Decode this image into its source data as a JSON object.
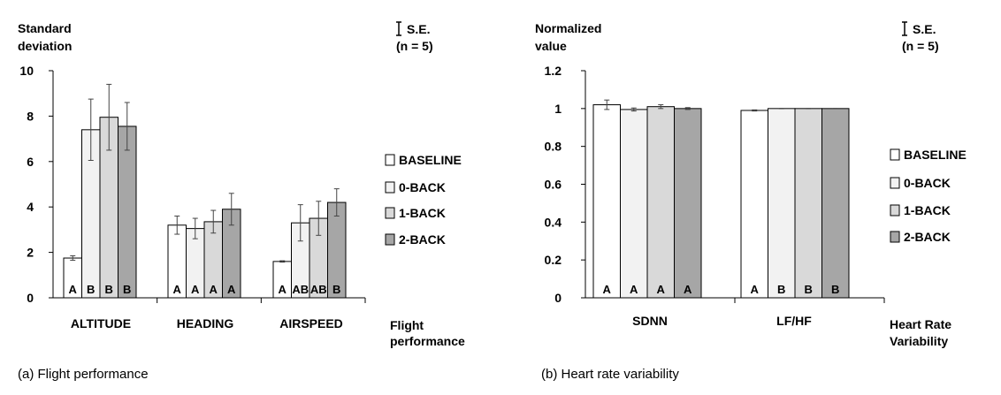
{
  "chart_data": [
    {
      "type": "bar",
      "panel_caption": "(a) Flight performance",
      "ylabel": [
        "Standard",
        "deviation"
      ],
      "xlabel": [
        "Flight",
        "performance"
      ],
      "ylim": [
        0,
        10
      ],
      "yticks": [
        0,
        2,
        4,
        6,
        8,
        10
      ],
      "ytick_labels": [
        "0",
        "2",
        "4",
        "6",
        "8",
        "10"
      ],
      "categories": [
        "ALTITUDE",
        "HEADING",
        "AIRSPEED"
      ],
      "se_note": {
        "label": "S.E.",
        "n_text": "(n = 5)"
      },
      "series": [
        {
          "name": "BASELINE",
          "color": "#ffffff",
          "values": [
            1.75,
            3.2,
            1.6
          ],
          "errors": [
            0.1,
            0.4,
            0.03
          ],
          "letters": [
            "A",
            "A",
            "A"
          ]
        },
        {
          "name": "0-BACK",
          "color": "#f2f2f2",
          "values": [
            7.4,
            3.05,
            3.3
          ],
          "errors": [
            1.35,
            0.45,
            0.8
          ],
          "letters": [
            "B",
            "A",
            "AB"
          ]
        },
        {
          "name": "1-BACK",
          "color": "#d9d9d9",
          "values": [
            7.95,
            3.35,
            3.5
          ],
          "errors": [
            1.45,
            0.5,
            0.75
          ],
          "letters": [
            "B",
            "A",
            "AB"
          ]
        },
        {
          "name": "2-BACK",
          "color": "#a6a6a6",
          "values": [
            7.55,
            3.9,
            4.2
          ],
          "errors": [
            1.05,
            0.7,
            0.6
          ],
          "letters": [
            "B",
            "A",
            "B"
          ]
        }
      ],
      "legend_placement": "right",
      "grid": false
    },
    {
      "type": "bar",
      "panel_caption": "(b) Heart rate variability",
      "ylabel": [
        "Normalized",
        "value"
      ],
      "xlabel": [
        "Heart Rate",
        "Variability"
      ],
      "ylim": [
        0,
        1.2
      ],
      "yticks": [
        0,
        0.2,
        0.4,
        0.6,
        0.8,
        1,
        1.2
      ],
      "ytick_labels": [
        "0",
        "0.2",
        "0.4",
        "0.6",
        "0.8",
        "1",
        "1.2"
      ],
      "categories": [
        "SDNN",
        "LF/HF"
      ],
      "se_note": {
        "label": "S.E.",
        "n_text": "(n = 5)"
      },
      "series": [
        {
          "name": "BASELINE",
          "color": "#ffffff",
          "values": [
            1.02,
            0.99
          ],
          "errors": [
            0.025,
            0.003
          ],
          "letters": [
            "A",
            "A"
          ]
        },
        {
          "name": "0-BACK",
          "color": "#f2f2f2",
          "values": [
            0.995,
            1.0
          ],
          "errors": [
            0.008,
            0.001
          ],
          "letters": [
            "A",
            "B"
          ]
        },
        {
          "name": "1-BACK",
          "color": "#d9d9d9",
          "values": [
            1.01,
            1.0
          ],
          "errors": [
            0.01,
            0.001
          ],
          "letters": [
            "A",
            "B"
          ]
        },
        {
          "name": "2-BACK",
          "color": "#a6a6a6",
          "values": [
            1.0,
            1.0
          ],
          "errors": [
            0.005,
            0.001
          ],
          "letters": [
            "A",
            "B"
          ]
        }
      ],
      "legend_placement": "right",
      "grid": false
    }
  ]
}
